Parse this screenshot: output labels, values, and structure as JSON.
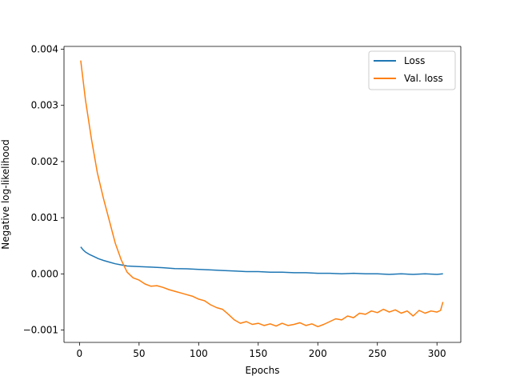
{
  "chart_data": {
    "type": "line",
    "title": "",
    "xlabel": "Epochs",
    "ylabel": "Negative log-likelihood",
    "xlim": [
      -13,
      320
    ],
    "ylim": [
      -0.00122,
      0.00405
    ],
    "x_ticks": [
      0,
      50,
      100,
      150,
      200,
      250,
      300
    ],
    "x_tick_labels": [
      "0",
      "50",
      "100",
      "150",
      "200",
      "250",
      "300"
    ],
    "y_ticks": [
      -0.001,
      0.0,
      0.001,
      0.002,
      0.003,
      0.004
    ],
    "y_tick_labels": [
      "−0.001",
      "0.000",
      "0.001",
      "0.002",
      "0.003",
      "0.004"
    ],
    "grid": false,
    "legend_position": "top-right",
    "series": [
      {
        "name": "Loss",
        "color": "#1f77b4",
        "points": [
          [
            1,
            0.00048
          ],
          [
            3,
            0.00043
          ],
          [
            5,
            0.00039
          ],
          [
            8,
            0.00035
          ],
          [
            12,
            0.00031
          ],
          [
            16,
            0.00027
          ],
          [
            20,
            0.00024
          ],
          [
            25,
            0.00021
          ],
          [
            30,
            0.00018
          ],
          [
            35,
            0.00016
          ],
          [
            40,
            0.00014
          ],
          [
            50,
            0.00013
          ],
          [
            60,
            0.00012
          ],
          [
            70,
            0.00011
          ],
          [
            80,
            9.5e-05
          ],
          [
            90,
            9e-05
          ],
          [
            100,
            8e-05
          ],
          [
            110,
            7e-05
          ],
          [
            120,
            6e-05
          ],
          [
            130,
            5e-05
          ],
          [
            140,
            4e-05
          ],
          [
            150,
            4e-05
          ],
          [
            160,
            3e-05
          ],
          [
            170,
            3e-05
          ],
          [
            180,
            2e-05
          ],
          [
            190,
            2e-05
          ],
          [
            200,
            1e-05
          ],
          [
            210,
            1e-05
          ],
          [
            220,
            0.0
          ],
          [
            230,
            1e-05
          ],
          [
            240,
            0.0
          ],
          [
            250,
            0.0
          ],
          [
            260,
            -1e-05
          ],
          [
            270,
            0.0
          ],
          [
            280,
            -1e-05
          ],
          [
            290,
            0.0
          ],
          [
            300,
            -1e-05
          ],
          [
            305,
            0.0
          ]
        ]
      },
      {
        "name": "Val. loss",
        "color": "#ff7f0e",
        "points": [
          [
            1,
            0.0038
          ],
          [
            5,
            0.0031
          ],
          [
            10,
            0.0024
          ],
          [
            15,
            0.0018
          ],
          [
            20,
            0.00135
          ],
          [
            25,
            0.00095
          ],
          [
            30,
            0.00055
          ],
          [
            35,
            0.00025
          ],
          [
            40,
            3e-05
          ],
          [
            45,
            -7e-05
          ],
          [
            50,
            -0.00011
          ],
          [
            55,
            -0.00018
          ],
          [
            60,
            -0.00022
          ],
          [
            65,
            -0.00021
          ],
          [
            70,
            -0.00024
          ],
          [
            75,
            -0.00028
          ],
          [
            80,
            -0.00031
          ],
          [
            85,
            -0.00034
          ],
          [
            90,
            -0.00037
          ],
          [
            95,
            -0.0004
          ],
          [
            100,
            -0.00045
          ],
          [
            105,
            -0.00048
          ],
          [
            110,
            -0.00055
          ],
          [
            115,
            -0.0006
          ],
          [
            120,
            -0.00063
          ],
          [
            125,
            -0.00072
          ],
          [
            130,
            -0.00082
          ],
          [
            135,
            -0.00088
          ],
          [
            140,
            -0.00085
          ],
          [
            145,
            -0.0009
          ],
          [
            150,
            -0.00088
          ],
          [
            155,
            -0.00092
          ],
          [
            160,
            -0.00089
          ],
          [
            165,
            -0.00093
          ],
          [
            170,
            -0.00088
          ],
          [
            175,
            -0.00092
          ],
          [
            180,
            -0.0009
          ],
          [
            185,
            -0.00087
          ],
          [
            190,
            -0.00092
          ],
          [
            195,
            -0.00089
          ],
          [
            200,
            -0.00094
          ],
          [
            205,
            -0.0009
          ],
          [
            210,
            -0.00085
          ],
          [
            215,
            -0.0008
          ],
          [
            220,
            -0.00082
          ],
          [
            225,
            -0.00075
          ],
          [
            230,
            -0.00078
          ],
          [
            235,
            -0.0007
          ],
          [
            240,
            -0.00072
          ],
          [
            245,
            -0.00066
          ],
          [
            250,
            -0.00069
          ],
          [
            255,
            -0.00063
          ],
          [
            260,
            -0.00068
          ],
          [
            265,
            -0.00064
          ],
          [
            270,
            -0.0007
          ],
          [
            275,
            -0.00066
          ],
          [
            280,
            -0.00075
          ],
          [
            285,
            -0.00065
          ],
          [
            290,
            -0.0007
          ],
          [
            295,
            -0.00066
          ],
          [
            300,
            -0.00068
          ],
          [
            303,
            -0.00065
          ],
          [
            305,
            -0.0005
          ]
        ]
      }
    ]
  }
}
